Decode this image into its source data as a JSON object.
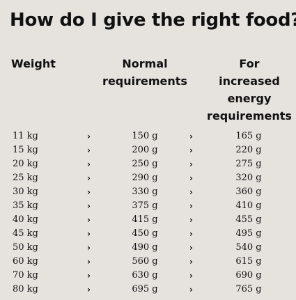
{
  "title": "How do I give the right food?",
  "headers": {
    "weight": "Weight",
    "normal_line1": "Normal",
    "normal_line2": "requirements",
    "increased_line1": "For",
    "increased_line2": "increased",
    "increased_line3": "energy",
    "increased_line4": "requirements"
  },
  "arrow_glyph": "›",
  "rows": [
    {
      "weight": "11 kg",
      "normal": "150 g",
      "increased": "165 g"
    },
    {
      "weight": "15 kg",
      "normal": "200 g",
      "increased": "220 g"
    },
    {
      "weight": "20 kg",
      "normal": "250 g",
      "increased": "275 g"
    },
    {
      "weight": "25 kg",
      "normal": "290 g",
      "increased": "320 g"
    },
    {
      "weight": "30 kg",
      "normal": "330 g",
      "increased": "360 g"
    },
    {
      "weight": "35 kg",
      "normal": "375 g",
      "increased": "410 g"
    },
    {
      "weight": "40 kg",
      "normal": "415 g",
      "increased": "455 g"
    },
    {
      "weight": "45 kg",
      "normal": "450 g",
      "increased": "495 g"
    },
    {
      "weight": "50 kg",
      "normal": "490 g",
      "increased": "540 g"
    },
    {
      "weight": "60 kg",
      "normal": "560 g",
      "increased": "615 g"
    },
    {
      "weight": "70 kg",
      "normal": "630 g",
      "increased": "690 g"
    },
    {
      "weight": "80 kg",
      "normal": "695 g",
      "increased": "765 g"
    }
  ]
}
